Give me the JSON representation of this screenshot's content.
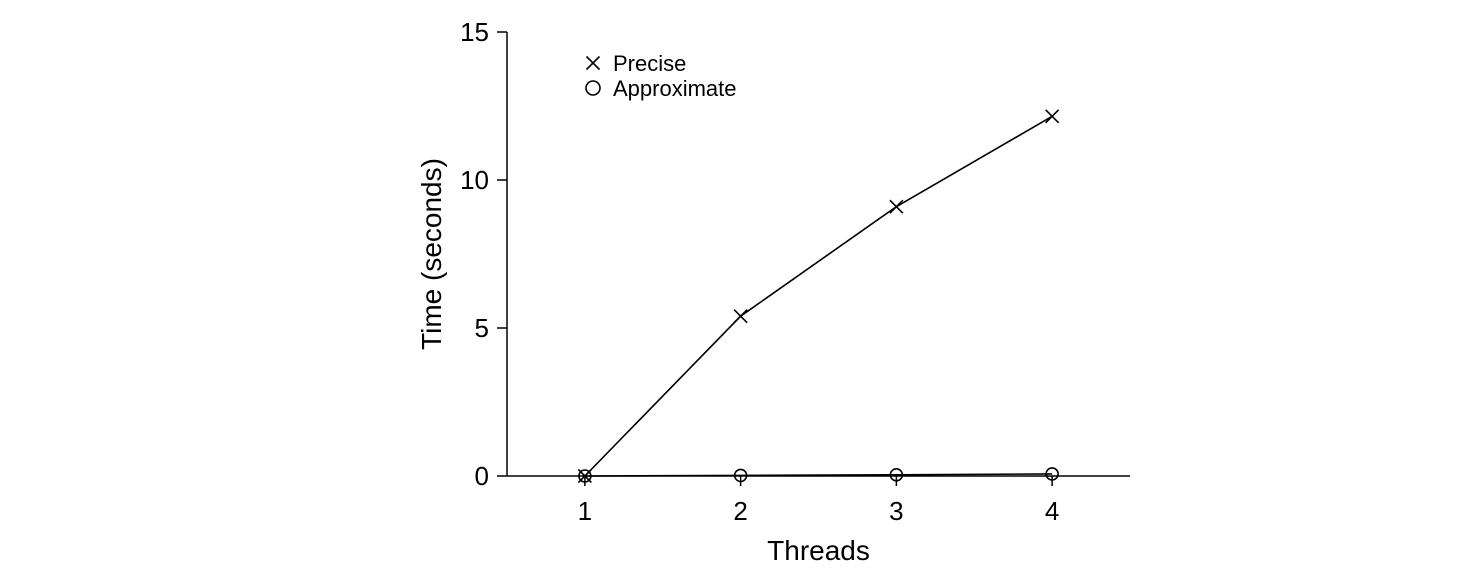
{
  "chart_data": {
    "type": "line",
    "title": "",
    "xlabel": "Threads",
    "ylabel": "Time (seconds)",
    "x": [
      1,
      2,
      3,
      4
    ],
    "xticks": [
      "1",
      "2",
      "3",
      "4"
    ],
    "xlim": [
      0.5,
      4.5
    ],
    "yticks": [
      "0",
      "5",
      "10",
      "15"
    ],
    "ylim": [
      0,
      15
    ],
    "grid": false,
    "legend_position": "top-left",
    "series": [
      {
        "name": "Precise",
        "marker": "x",
        "values": [
          0.0,
          5.4,
          9.1,
          12.15
        ]
      },
      {
        "name": "Approximate",
        "marker": "o",
        "values": [
          0.0,
          0.02,
          0.04,
          0.07
        ]
      }
    ]
  }
}
